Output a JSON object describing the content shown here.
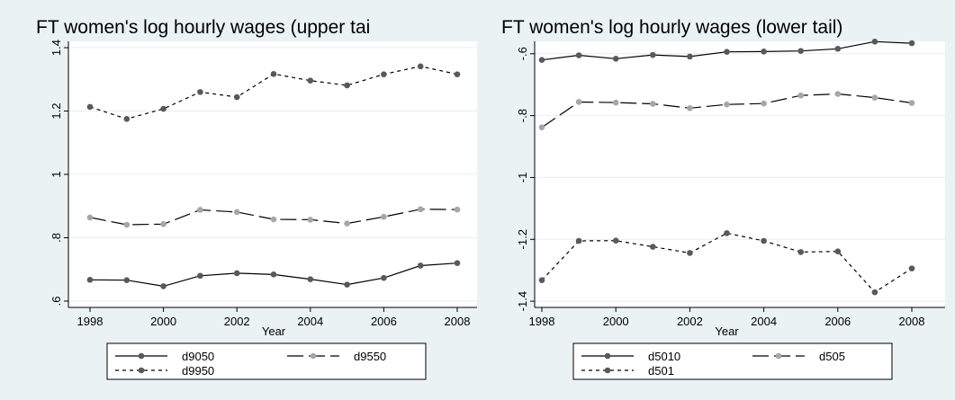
{
  "colors": {
    "outer_background": "#eaf2f3",
    "plot_background": "#ffffff",
    "grid": "#e8eef0",
    "dark_series": "#595959",
    "light_series": "#a6a6a6"
  },
  "chart_data": [
    {
      "type": "line",
      "title": "FT women's log hourly wages (upper tai",
      "xlabel": "Year",
      "ylabel": "",
      "x": [
        1998,
        1999,
        2000,
        2001,
        2002,
        2003,
        2004,
        2005,
        2006,
        2007,
        2008
      ],
      "xticks": [
        "1998",
        "2000",
        "2002",
        "2004",
        "2006",
        "2008"
      ],
      "yticks": [
        "1.4",
        "1.2",
        "1",
        ".8",
        ".6"
      ],
      "ylim": [
        0.58,
        1.42
      ],
      "grid": true,
      "legend_position": "bottom",
      "series": [
        {
          "name": "d9050",
          "values": [
            0.667,
            0.666,
            0.647,
            0.68,
            0.688,
            0.684,
            0.669,
            0.652,
            0.673,
            0.712,
            0.72
          ]
        },
        {
          "name": "d9550",
          "values": [
            0.864,
            0.841,
            0.843,
            0.888,
            0.881,
            0.858,
            0.857,
            0.845,
            0.866,
            0.89,
            0.889
          ]
        },
        {
          "name": "d9950",
          "values": [
            1.213,
            1.175,
            1.207,
            1.26,
            1.244,
            1.317,
            1.296,
            1.281,
            1.316,
            1.341,
            1.316
          ]
        }
      ]
    },
    {
      "type": "line",
      "title": "FT women's log hourly wages (lower tail)",
      "xlabel": "Year",
      "ylabel": "",
      "x": [
        1998,
        1999,
        2000,
        2001,
        2002,
        2003,
        2004,
        2005,
        2006,
        2007,
        2008
      ],
      "xticks": [
        "1998",
        "2000",
        "2002",
        "2004",
        "2006",
        "2008"
      ],
      "yticks": [
        "-.6",
        "-.8",
        "-1",
        "-1.2",
        "-1.4"
      ],
      "ylim": [
        -1.42,
        -0.56
      ],
      "grid": true,
      "legend_position": "bottom",
      "series": [
        {
          "name": "d5010",
          "values": [
            -0.62,
            -0.605,
            -0.616,
            -0.604,
            -0.609,
            -0.594,
            -0.593,
            -0.591,
            -0.584,
            -0.561,
            -0.566
          ]
        },
        {
          "name": "d505",
          "values": [
            -0.838,
            -0.756,
            -0.758,
            -0.762,
            -0.776,
            -0.764,
            -0.761,
            -0.735,
            -0.73,
            -0.742,
            -0.759
          ]
        },
        {
          "name": "d501",
          "values": [
            -1.332,
            -1.205,
            -1.204,
            -1.224,
            -1.244,
            -1.18,
            -1.205,
            -1.241,
            -1.239,
            -1.371,
            -1.294
          ]
        }
      ]
    }
  ]
}
